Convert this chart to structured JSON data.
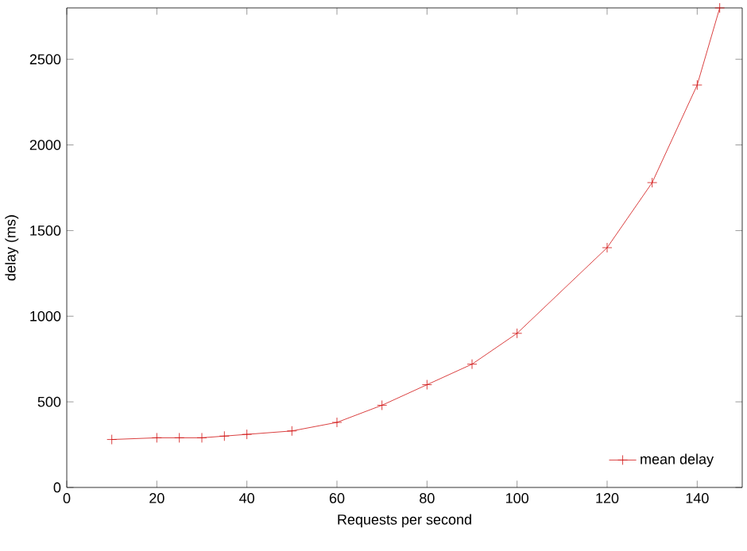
{
  "chart_data": {
    "type": "line",
    "xlabel": "Requests per second",
    "ylabel": "delay (ms)",
    "x": [
      10,
      20,
      25,
      30,
      35,
      40,
      50,
      60,
      70,
      80,
      90,
      100,
      120,
      130,
      140,
      145
    ],
    "series": [
      {
        "name": "mean delay",
        "color": "#d01010",
        "values": [
          280,
          290,
          290,
          290,
          300,
          310,
          330,
          380,
          480,
          600,
          720,
          900,
          1400,
          1780,
          2350,
          2800
        ]
      }
    ],
    "xlim": [
      0,
      150
    ],
    "xticks": [
      0,
      20,
      40,
      60,
      80,
      100,
      120,
      140
    ],
    "ylim": [
      0,
      2800
    ],
    "yticks": [
      0,
      500,
      1000,
      1500,
      2000,
      2500
    ],
    "legend": "bottom right",
    "marker": "cross",
    "line_style": "solid",
    "grid": false
  }
}
